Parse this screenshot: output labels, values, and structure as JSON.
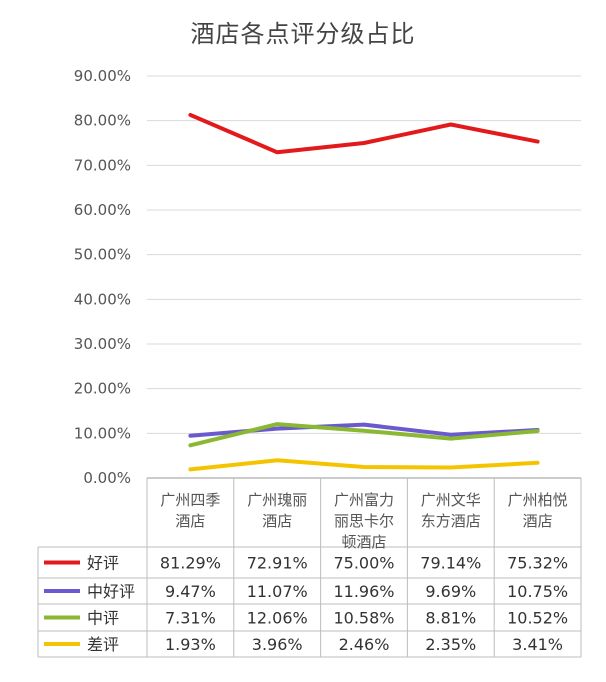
{
  "chart_data": {
    "type": "line",
    "title": "酒店各点评分级占比",
    "categories": [
      [
        "广州四季",
        "酒店"
      ],
      [
        "广州瑰丽",
        "酒店"
      ],
      [
        "广州富力",
        "丽思卡尔",
        "顿酒店"
      ],
      [
        "广州文华",
        "东方酒店"
      ],
      [
        "广州柏悦",
        "酒店"
      ]
    ],
    "ylim": [
      0,
      90
    ],
    "yticks": [
      "0.00%",
      "10.00%",
      "20.00%",
      "30.00%",
      "40.00%",
      "50.00%",
      "60.00%",
      "70.00%",
      "80.00%",
      "90.00%"
    ],
    "grid": true,
    "legend_placement": "data-table",
    "series": [
      {
        "name": "好评",
        "color": "#e31a1c",
        "values": [
          81.29,
          72.91,
          75.0,
          79.14,
          75.32
        ],
        "labels": [
          "81.29%",
          "72.91%",
          "75.00%",
          "79.14%",
          "75.32%"
        ]
      },
      {
        "name": "中好评",
        "color": "#6a5acd",
        "values": [
          9.47,
          11.07,
          11.96,
          9.69,
          10.75
        ],
        "labels": [
          "9.47%",
          "11.07%",
          "11.96%",
          "9.69%",
          "10.75%"
        ]
      },
      {
        "name": "中评",
        "color": "#8ab832",
        "values": [
          7.31,
          12.06,
          10.58,
          8.81,
          10.52
        ],
        "labels": [
          "7.31%",
          "12.06%",
          "10.58%",
          "8.81%",
          "10.52%"
        ]
      },
      {
        "name": "差评",
        "color": "#f5c400",
        "values": [
          1.93,
          3.96,
          2.46,
          2.35,
          3.41
        ],
        "labels": [
          "1.93%",
          "3.96%",
          "2.46%",
          "2.35%",
          "3.41%"
        ]
      }
    ]
  }
}
